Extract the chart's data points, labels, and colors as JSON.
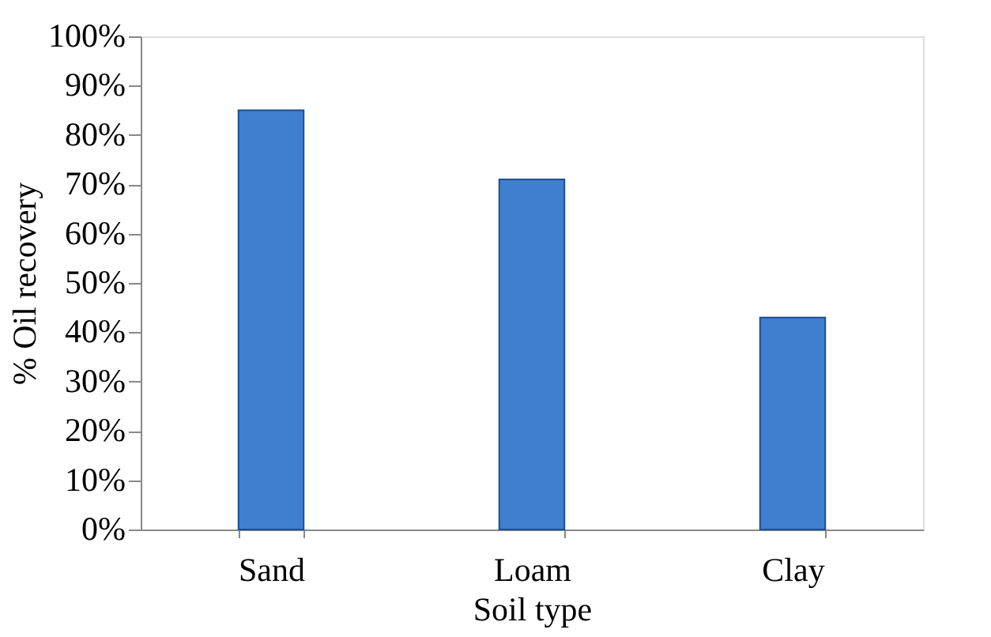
{
  "chart_data": {
    "type": "bar",
    "xlabel": "Soil type",
    "ylabel": "% Oil recovery",
    "categories": [
      "Sand",
      "Loam",
      "Clay"
    ],
    "values": [
      85,
      71,
      43
    ],
    "color": "#3f7fcf",
    "ylim": [
      0,
      100
    ],
    "yticks": [
      {
        "value": 0,
        "label": "0%"
      },
      {
        "value": 10,
        "label": "10%"
      },
      {
        "value": 20,
        "label": "20%"
      },
      {
        "value": 30,
        "label": "30%"
      },
      {
        "value": 40,
        "label": "40%"
      },
      {
        "value": 50,
        "label": "50%"
      },
      {
        "value": 60,
        "label": "60%"
      },
      {
        "value": 70,
        "label": "70%"
      },
      {
        "value": 80,
        "label": "80%"
      },
      {
        "value": 90,
        "label": "90%"
      },
      {
        "value": 100,
        "label": "100%"
      }
    ],
    "grid": false
  }
}
